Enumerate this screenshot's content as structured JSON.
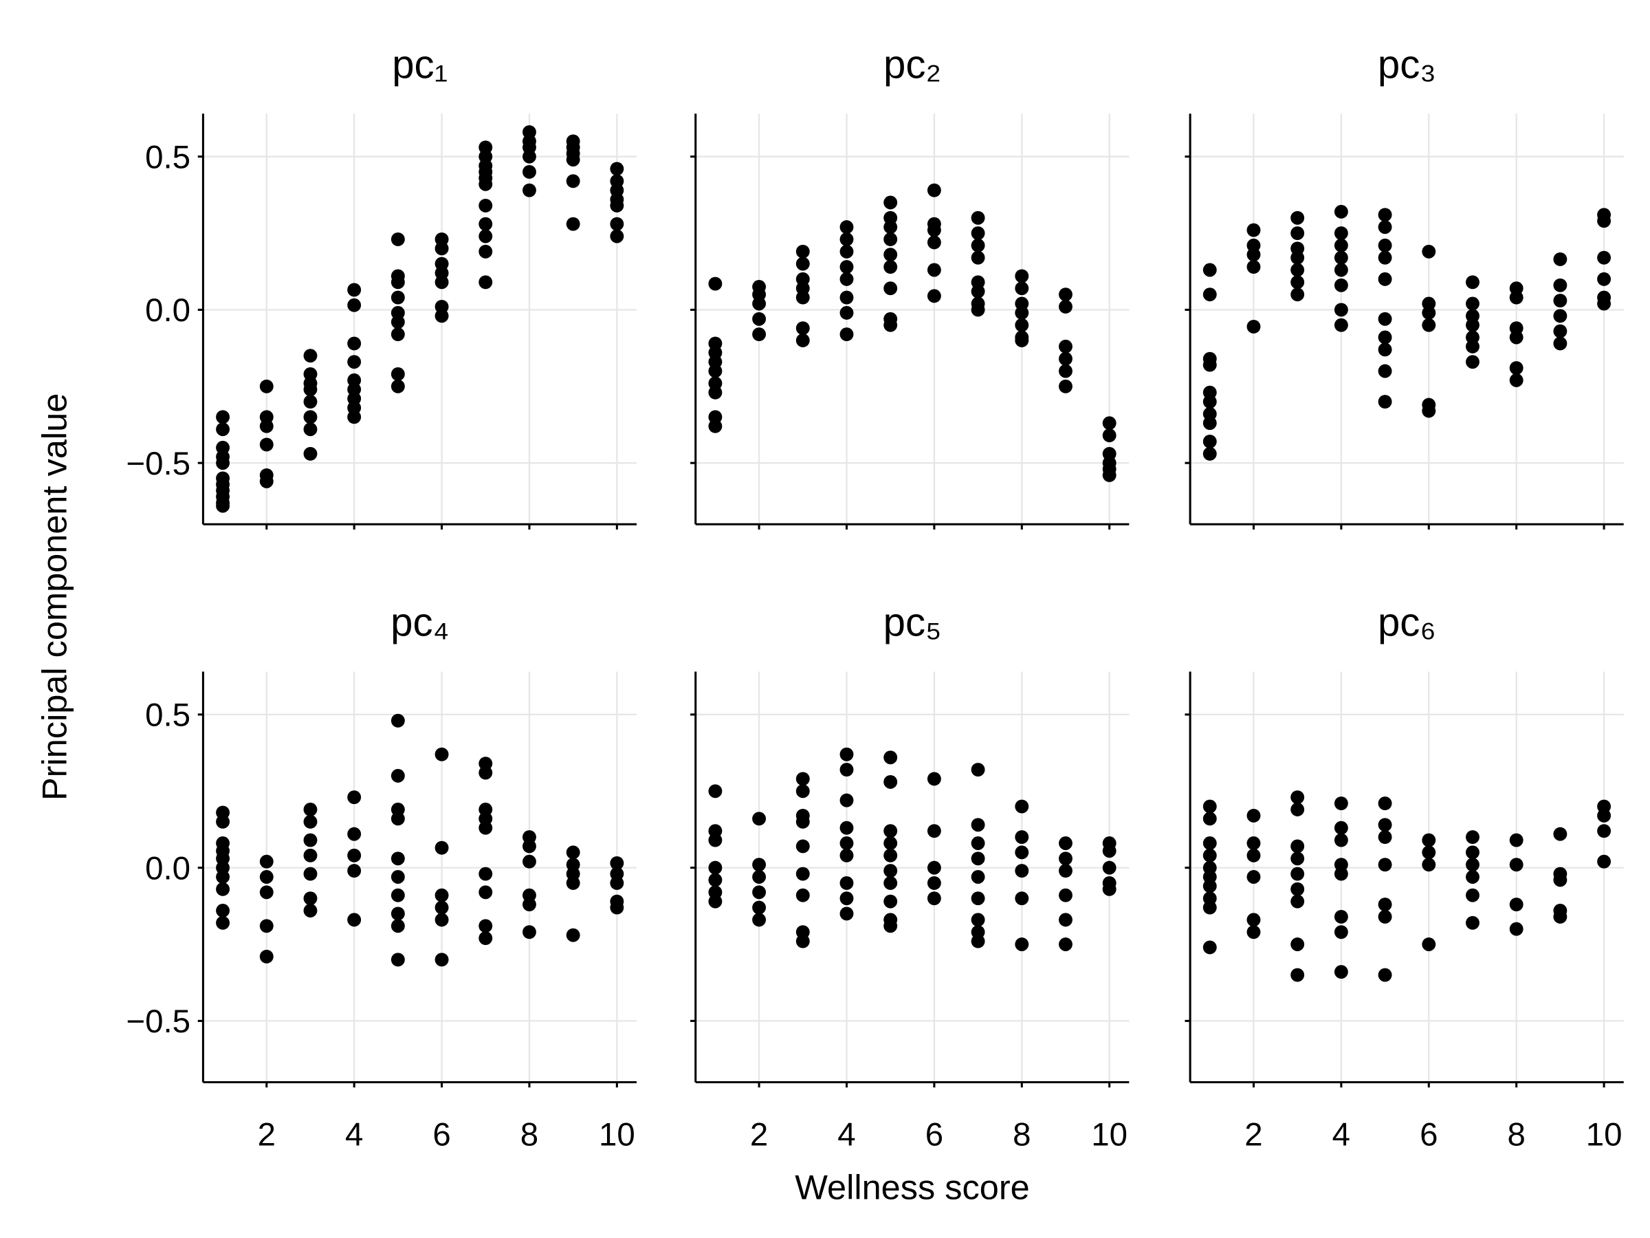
{
  "chart_data": {
    "type": "scatter",
    "xlabel": "Wellness score",
    "ylabel": "Principal component value",
    "xlim": [
      0.55,
      10.45
    ],
    "ylim": [
      -0.7,
      0.64
    ],
    "xticks": [
      2,
      4,
      6,
      8,
      10
    ],
    "xtick_labels": [
      "2",
      "4",
      "6",
      "8",
      "10"
    ],
    "yticks": [
      -0.5,
      0.0,
      0.5
    ],
    "ytick_labels": [
      "−0.5",
      "0.0",
      "0.5"
    ],
    "grid": true,
    "marker_color": "#000000",
    "panels": [
      {
        "title": "pc₁",
        "points": {
          "1": [
            -0.35,
            -0.39,
            -0.45,
            -0.48,
            -0.5,
            -0.55,
            -0.57,
            -0.59,
            -0.61,
            -0.63,
            -0.64
          ],
          "2": [
            -0.25,
            -0.35,
            -0.38,
            -0.44,
            -0.54,
            -0.56
          ],
          "3": [
            -0.15,
            -0.21,
            -0.24,
            -0.26,
            -0.3,
            -0.35,
            -0.39,
            -0.47
          ],
          "4": [
            0.065,
            0.015,
            -0.11,
            -0.17,
            -0.23,
            -0.26,
            -0.29,
            -0.32,
            -0.35
          ],
          "5": [
            0.23,
            0.11,
            0.09,
            0.04,
            -0.01,
            -0.04,
            -0.08,
            -0.21,
            -0.25
          ],
          "6": [
            0.23,
            0.2,
            0.15,
            0.12,
            0.09,
            0.01,
            -0.02
          ],
          "7": [
            0.53,
            0.5,
            0.47,
            0.45,
            0.43,
            0.41,
            0.34,
            0.28,
            0.24,
            0.19,
            0.09
          ],
          "8": [
            0.58,
            0.55,
            0.53,
            0.5,
            0.45,
            0.39
          ],
          "9": [
            0.55,
            0.53,
            0.51,
            0.49,
            0.42,
            0.28
          ],
          "10": [
            0.46,
            0.42,
            0.39,
            0.36,
            0.34,
            0.28,
            0.24
          ]
        }
      },
      {
        "title": "pc₂",
        "points": {
          "1": [
            0.085,
            -0.11,
            -0.14,
            -0.17,
            -0.2,
            -0.24,
            -0.27,
            -0.35,
            -0.38
          ],
          "2": [
            0.075,
            0.05,
            0.02,
            -0.03,
            -0.08
          ],
          "3": [
            0.19,
            0.15,
            0.1,
            0.07,
            0.04,
            -0.06,
            -0.1
          ],
          "4": [
            0.27,
            0.23,
            0.19,
            0.14,
            0.1,
            0.04,
            -0.01,
            -0.08
          ],
          "5": [
            0.35,
            0.3,
            0.27,
            0.23,
            0.18,
            0.14,
            0.07,
            -0.03,
            -0.05
          ],
          "6": [
            0.39,
            0.28,
            0.26,
            0.22,
            0.13,
            0.045
          ],
          "7": [
            0.3,
            0.25,
            0.21,
            0.17,
            0.09,
            0.06,
            0.02,
            0.0
          ],
          "8": [
            0.11,
            0.07,
            0.02,
            -0.01,
            -0.05,
            -0.09,
            -0.1
          ],
          "9": [
            0.05,
            0.01,
            -0.12,
            -0.16,
            -0.2,
            -0.25
          ],
          "10": [
            -0.37,
            -0.41,
            -0.47,
            -0.5,
            -0.52,
            -0.54
          ]
        }
      },
      {
        "title": "pc₃",
        "points": {
          "1": [
            0.13,
            0.05,
            -0.16,
            -0.18,
            -0.27,
            -0.3,
            -0.34,
            -0.37,
            -0.43,
            -0.47
          ],
          "2": [
            0.26,
            0.21,
            0.18,
            0.14,
            -0.055
          ],
          "3": [
            0.3,
            0.25,
            0.2,
            0.17,
            0.13,
            0.09,
            0.05
          ],
          "4": [
            0.32,
            0.25,
            0.21,
            0.17,
            0.13,
            0.08,
            0.0,
            -0.05
          ],
          "5": [
            0.31,
            0.27,
            0.21,
            0.17,
            0.1,
            -0.03,
            -0.09,
            -0.13,
            -0.2,
            -0.3
          ],
          "6": [
            0.19,
            0.02,
            -0.01,
            -0.05,
            -0.31,
            -0.33
          ],
          "7": [
            0.09,
            0.02,
            -0.02,
            -0.05,
            -0.09,
            -0.12,
            -0.17
          ],
          "8": [
            0.07,
            0.04,
            -0.06,
            -0.09,
            -0.19,
            -0.23
          ],
          "9": [
            0.165,
            0.08,
            0.03,
            -0.02,
            -0.07,
            -0.11
          ],
          "10": [
            0.31,
            0.29,
            0.17,
            0.1,
            0.04,
            0.02
          ]
        }
      },
      {
        "title": "pc₄",
        "points": {
          "1": [
            0.18,
            0.15,
            0.08,
            0.055,
            0.03,
            0.0,
            -0.03,
            -0.07,
            -0.14,
            -0.18
          ],
          "2": [
            0.02,
            -0.03,
            -0.08,
            -0.19,
            -0.29
          ],
          "3": [
            0.19,
            0.15,
            0.09,
            0.04,
            -0.02,
            -0.1,
            -0.14
          ],
          "4": [
            0.23,
            0.11,
            0.04,
            -0.01,
            -0.17
          ],
          "5": [
            0.48,
            0.3,
            0.19,
            0.16,
            0.03,
            -0.03,
            -0.09,
            -0.15,
            -0.19,
            -0.3
          ],
          "6": [
            0.37,
            0.065,
            -0.09,
            -0.13,
            -0.17,
            -0.3
          ],
          "7": [
            0.34,
            0.31,
            0.19,
            0.16,
            0.13,
            -0.02,
            -0.08,
            -0.19,
            -0.23
          ],
          "8": [
            0.1,
            0.07,
            0.02,
            -0.09,
            -0.12,
            -0.21
          ],
          "9": [
            0.05,
            0.01,
            -0.02,
            -0.05,
            -0.22
          ],
          "10": [
            0.015,
            -0.02,
            -0.05,
            -0.11,
            -0.13
          ]
        }
      },
      {
        "title": "pc₅",
        "points": {
          "1": [
            0.25,
            0.12,
            0.09,
            0.0,
            -0.04,
            -0.08,
            -0.11
          ],
          "2": [
            0.16,
            0.01,
            -0.03,
            -0.08,
            -0.13,
            -0.17
          ],
          "3": [
            0.29,
            0.25,
            0.17,
            0.15,
            0.07,
            -0.02,
            -0.09,
            -0.21,
            -0.24
          ],
          "4": [
            0.37,
            0.32,
            0.22,
            0.13,
            0.08,
            0.04,
            -0.05,
            -0.1,
            -0.15
          ],
          "5": [
            0.36,
            0.28,
            0.12,
            0.08,
            0.04,
            -0.01,
            -0.05,
            -0.11,
            -0.17,
            -0.19
          ],
          "6": [
            0.29,
            0.12,
            0.0,
            -0.05,
            -0.1
          ],
          "7": [
            0.32,
            0.14,
            0.08,
            0.03,
            -0.03,
            -0.1,
            -0.17,
            -0.21,
            -0.24
          ],
          "8": [
            0.2,
            0.1,
            0.05,
            -0.01,
            -0.1,
            -0.25
          ],
          "9": [
            0.08,
            0.03,
            -0.01,
            -0.09,
            -0.17,
            -0.25
          ],
          "10": [
            0.08,
            0.055,
            0.0,
            -0.05,
            -0.07
          ]
        }
      },
      {
        "title": "pc₆",
        "points": {
          "1": [
            0.2,
            0.16,
            0.08,
            0.04,
            0.0,
            -0.03,
            -0.06,
            -0.1,
            -0.13,
            -0.26
          ],
          "2": [
            0.17,
            0.08,
            0.04,
            -0.03,
            -0.17,
            -0.21
          ],
          "3": [
            0.23,
            0.19,
            0.07,
            0.03,
            -0.02,
            -0.07,
            -0.11,
            -0.25,
            -0.35
          ],
          "4": [
            0.21,
            0.13,
            0.09,
            0.01,
            -0.02,
            -0.16,
            -0.21,
            -0.34
          ],
          "5": [
            0.21,
            0.14,
            0.1,
            0.01,
            -0.12,
            -0.16,
            -0.35
          ],
          "6": [
            0.09,
            0.05,
            0.01,
            -0.25
          ],
          "7": [
            0.1,
            0.05,
            0.01,
            -0.03,
            -0.09,
            -0.18
          ],
          "8": [
            0.09,
            0.01,
            -0.12,
            -0.2
          ],
          "9": [
            0.11,
            -0.02,
            -0.04,
            -0.14,
            -0.16
          ],
          "10": [
            0.2,
            0.17,
            0.12,
            0.02
          ]
        }
      }
    ]
  }
}
